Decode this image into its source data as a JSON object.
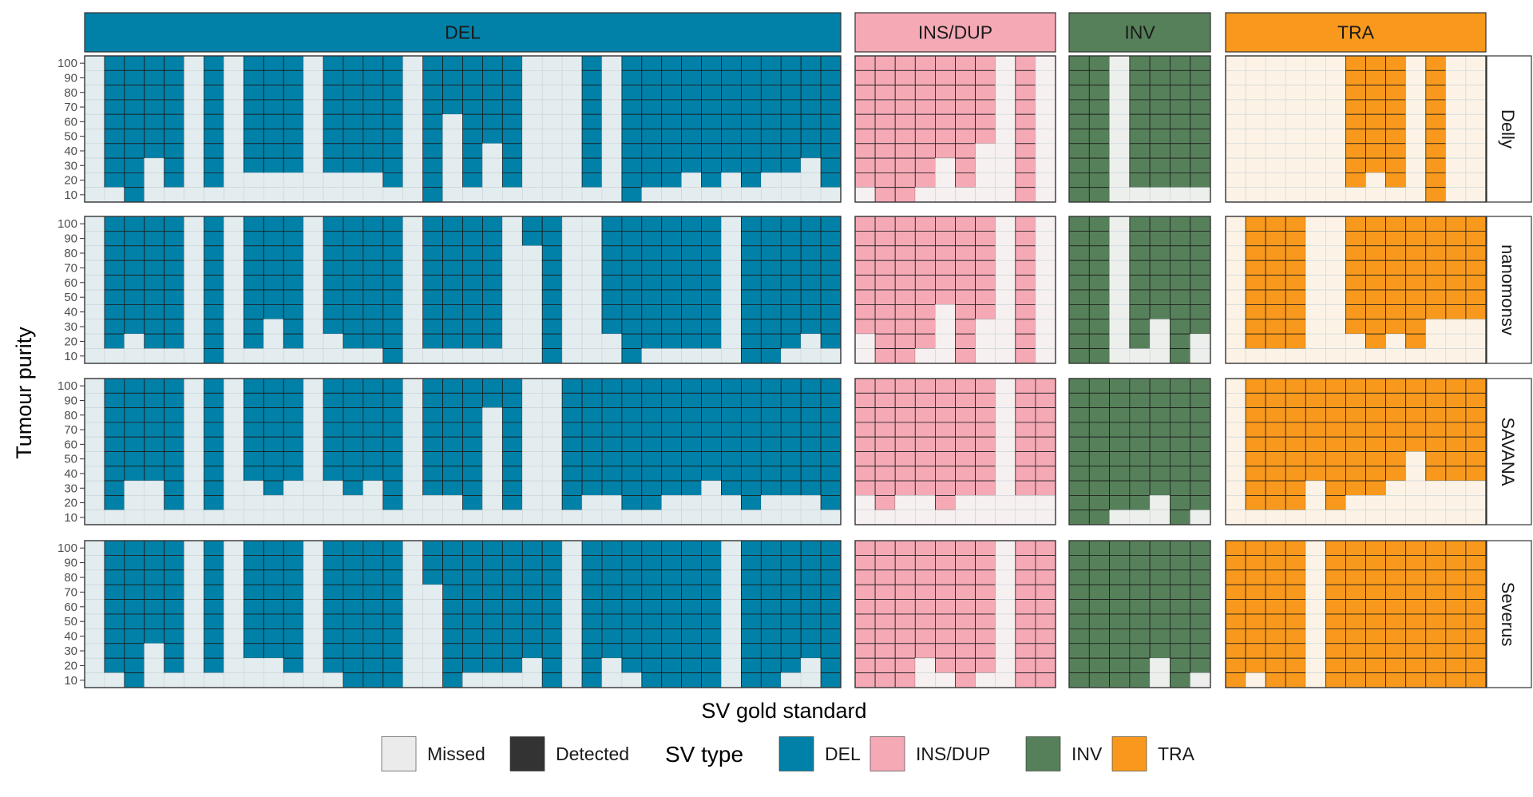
{
  "chart_data": {
    "type": "heatmap",
    "xlabel": "SV gold standard",
    "ylabel": "Tumour purity",
    "y_ticks": [
      "100",
      "90",
      "80",
      "70",
      "60",
      "50",
      "40",
      "30",
      "20",
      "10"
    ],
    "sv_types": [
      {
        "label": "DEL",
        "color": "#0181A8",
        "n_svs": 38
      },
      {
        "label": "INS/DUP",
        "color": "#F4A9B5",
        "n_svs": 10
      },
      {
        "label": "INV",
        "color": "#56805A",
        "n_svs": 7
      },
      {
        "label": "TRA",
        "color": "#F8991D",
        "n_svs": 13
      }
    ],
    "callers": [
      "Delly",
      "nanomonsv",
      "SAVANA",
      "Severus"
    ],
    "detection_note": "Each cell = one SV (column) at one tumour purity (row); coloured = detected, light = missed. Values are lowest purity detected per SV (null = never detected).",
    "min_detected_purity": {
      "Delly": {
        "DEL": [
          null,
          20,
          10,
          40,
          20,
          null,
          20,
          null,
          30,
          30,
          30,
          null,
          30,
          30,
          30,
          20,
          null,
          10,
          70,
          20,
          50,
          20,
          null,
          null,
          null,
          20,
          null,
          10,
          20,
          20,
          30,
          20,
          30,
          20,
          30,
          30,
          40,
          20
        ],
        "INS/DUP": [
          20,
          10,
          10,
          20,
          40,
          20,
          50,
          null,
          10,
          null
        ],
        "INV": [
          10,
          10,
          null,
          20,
          20,
          20,
          20
        ],
        "TRA": [
          null,
          null,
          null,
          null,
          null,
          null,
          20,
          30,
          20,
          null,
          10,
          null,
          null
        ]
      },
      "nanomonsv": {
        "DEL": [
          null,
          20,
          30,
          20,
          20,
          null,
          10,
          null,
          20,
          40,
          20,
          null,
          30,
          20,
          20,
          10,
          null,
          20,
          20,
          20,
          20,
          null,
          90,
          10,
          null,
          null,
          30,
          10,
          20,
          20,
          20,
          20,
          null,
          10,
          10,
          20,
          30,
          20
        ],
        "INS/DUP": [
          30,
          10,
          10,
          20,
          50,
          10,
          40,
          null,
          10,
          null
        ],
        "INV": [
          10,
          10,
          null,
          20,
          40,
          10,
          30
        ],
        "TRA": [
          null,
          20,
          20,
          20,
          null,
          null,
          30,
          20,
          30,
          20,
          40,
          40,
          40
        ]
      },
      "SAVANA": {
        "DEL": [
          null,
          20,
          40,
          40,
          20,
          null,
          20,
          null,
          40,
          30,
          40,
          null,
          40,
          30,
          40,
          20,
          null,
          30,
          30,
          20,
          90,
          20,
          null,
          null,
          20,
          30,
          30,
          20,
          20,
          30,
          30,
          40,
          30,
          20,
          30,
          30,
          30,
          20
        ],
        "INS/DUP": [
          30,
          20,
          30,
          30,
          20,
          30,
          30,
          null,
          30,
          30
        ],
        "INV": [
          10,
          10,
          20,
          20,
          30,
          10,
          20
        ],
        "TRA": [
          null,
          20,
          20,
          20,
          40,
          20,
          30,
          30,
          40,
          60,
          40,
          40,
          40
        ]
      },
      "Severus": {
        "DEL": [
          null,
          20,
          10,
          40,
          20,
          null,
          20,
          null,
          30,
          30,
          20,
          null,
          20,
          10,
          10,
          10,
          null,
          80,
          10,
          20,
          20,
          20,
          30,
          10,
          null,
          10,
          30,
          20,
          10,
          10,
          10,
          10,
          null,
          10,
          10,
          20,
          30,
          10
        ],
        "INS/DUP": [
          10,
          10,
          10,
          30,
          20,
          10,
          20,
          null,
          10,
          10
        ],
        "INV": [
          10,
          10,
          10,
          10,
          30,
          10,
          20
        ],
        "TRA": [
          10,
          20,
          10,
          10,
          null,
          10,
          10,
          10,
          10,
          10,
          10,
          10,
          10
        ]
      }
    },
    "legend": {
      "position": "bottom",
      "items": [
        {
          "label": "Missed",
          "color": "#EBEBEB"
        },
        {
          "label": "Detected",
          "color": "#333333"
        }
      ],
      "title": "SV type",
      "type_items": [
        {
          "label": "DEL",
          "color": "#0181A8"
        },
        {
          "label": "INS/DUP",
          "color": "#F4A9B5"
        },
        {
          "label": "INV",
          "color": "#56805A"
        },
        {
          "label": "TRA",
          "color": "#F8991D"
        }
      ]
    },
    "missed_tints": {
      "DEL": "#E3EDF0",
      "INS/DUP": "#F7F0F0",
      "INV": "#ECEFEB",
      "TRA": "#FCF3E6"
    }
  }
}
